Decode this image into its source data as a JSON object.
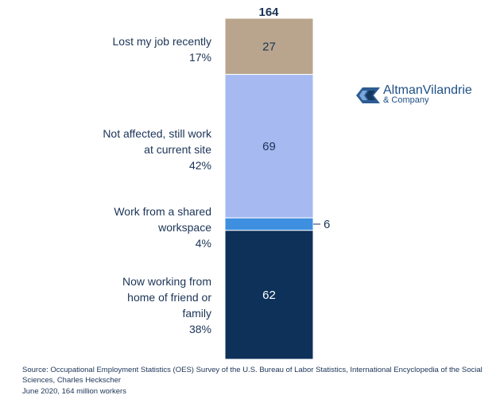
{
  "chart_data": {
    "type": "bar",
    "stacked": true,
    "total": 164,
    "total_label": "164",
    "segments": [
      {
        "label": "Lost my job recently",
        "value": 27,
        "value_label": "27",
        "percent": "17%",
        "color": "#b9a58d"
      },
      {
        "label": "Not affected, still work at current site",
        "value": 69,
        "value_label": "69",
        "percent": "42%",
        "color": "#a6b9f0"
      },
      {
        "label": "Work from a shared workspace",
        "value": 6,
        "value_label": "6",
        "percent": "4%",
        "color": "#3e8fe0"
      },
      {
        "label": "Now working from home of friend or family",
        "value": 62,
        "value_label": "62",
        "percent": "38%",
        "color": "#0d3159"
      }
    ]
  },
  "logo": {
    "name": "AltmanVilandrie",
    "sub": "& Company"
  },
  "source": {
    "line1": "Source: Occupational Employment Statistics (OES) Survey of the U.S. Bureau of Labor Statistics, International Encyclopedia of the Social",
    "line2": "Sciences, Charles Heckscher",
    "line3": "June 2020, 164 million workers"
  }
}
